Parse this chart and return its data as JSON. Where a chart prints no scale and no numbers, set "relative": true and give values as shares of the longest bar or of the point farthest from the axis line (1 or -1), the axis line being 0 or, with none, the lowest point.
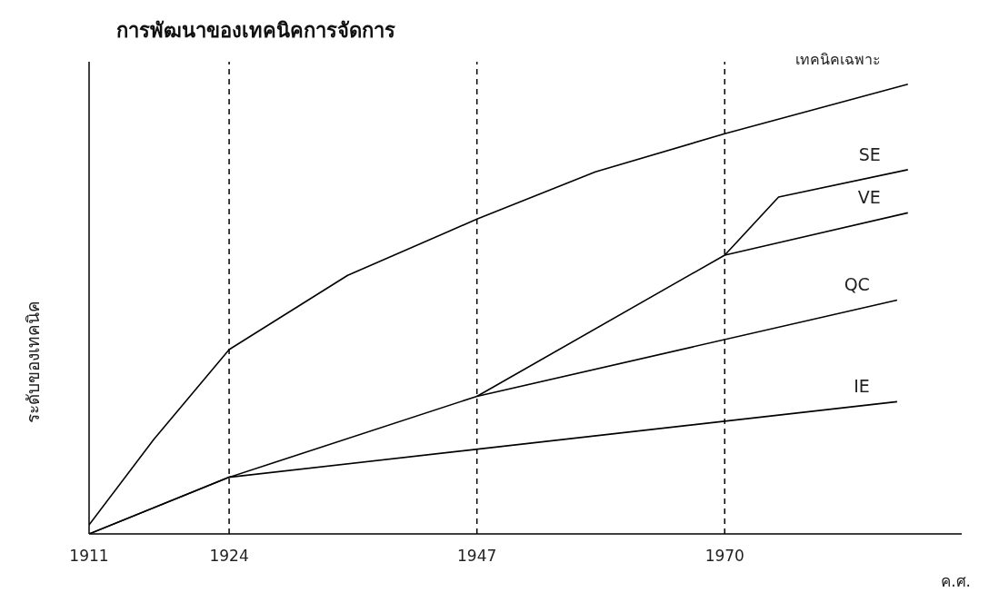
{
  "chart_data": {
    "type": "line",
    "title": "การพัฒนาของเทคนิคการจัดการ",
    "xlabel": "ค.ศ.",
    "ylabel": "ระดับของเทคนิค",
    "relative": true,
    "xlim": [
      1911,
      1992
    ],
    "xticks": [
      1911,
      1924,
      1947,
      1970
    ],
    "grid": false,
    "marker": "none",
    "line_style": "solid",
    "series": [
      {
        "name": "เทคนิคเฉพาะ",
        "color": "#000000",
        "x": [
          1911,
          1917,
          1924,
          1935,
          1947,
          1958,
          1970,
          1987
        ],
        "values": [
          0.02,
          0.21,
          0.41,
          0.575,
          0.7,
          0.805,
          0.89,
          1.0
        ]
      },
      {
        "name": "SE",
        "color": "#000000",
        "x": [
          1970,
          1975,
          1987
        ],
        "values": [
          0.62,
          0.749,
          0.81
        ]
      },
      {
        "name": "VE",
        "color": "#000000",
        "x": [
          1947,
          1970,
          1987
        ],
        "values": [
          0.306,
          0.62,
          0.714
        ]
      },
      {
        "name": "QC",
        "color": "#000000",
        "x": [
          1911,
          1924,
          1947,
          1986
        ],
        "values": [
          0,
          0.126,
          0.306,
          0.52
        ]
      },
      {
        "name": "IE",
        "color": "#000000",
        "x": [
          1911,
          1924,
          1986
        ],
        "values": [
          0,
          0.126,
          0.294
        ]
      }
    ],
    "ref_lines": [
      {
        "axis": "x",
        "value": 1924,
        "line_style": "dashed"
      },
      {
        "axis": "x",
        "value": 1947,
        "line_style": "dashed"
      },
      {
        "axis": "x",
        "value": 1970,
        "line_style": "dashed"
      }
    ]
  }
}
